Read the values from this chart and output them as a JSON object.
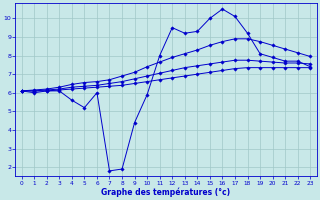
{
  "x": [
    0,
    1,
    2,
    3,
    4,
    5,
    6,
    7,
    8,
    9,
    10,
    11,
    12,
    13,
    14,
    15,
    16,
    17,
    18,
    19,
    20,
    21,
    22,
    23
  ],
  "line_zigzag": [
    6.1,
    6.0,
    6.1,
    6.1,
    5.6,
    5.2,
    6.0,
    1.8,
    1.9,
    4.4,
    5.9,
    8.0,
    9.5,
    9.2,
    9.3,
    10.0,
    10.5,
    10.1,
    9.2,
    8.1,
    7.9,
    7.7,
    7.7,
    7.4
  ],
  "line_smooth1": [
    6.1,
    6.15,
    6.2,
    6.3,
    6.45,
    6.55,
    6.6,
    6.7,
    6.9,
    7.1,
    7.4,
    7.65,
    7.9,
    8.1,
    8.3,
    8.55,
    8.75,
    8.9,
    8.9,
    8.75,
    8.55,
    8.35,
    8.15,
    7.95
  ],
  "line_smooth2": [
    6.1,
    6.1,
    6.15,
    6.2,
    6.3,
    6.35,
    6.4,
    6.5,
    6.6,
    6.75,
    6.9,
    7.05,
    7.2,
    7.35,
    7.45,
    7.55,
    7.65,
    7.75,
    7.75,
    7.7,
    7.65,
    7.6,
    7.6,
    7.55
  ],
  "line_smooth3": [
    6.1,
    6.1,
    6.1,
    6.15,
    6.2,
    6.25,
    6.3,
    6.35,
    6.4,
    6.5,
    6.6,
    6.7,
    6.8,
    6.9,
    7.0,
    7.1,
    7.2,
    7.3,
    7.35,
    7.35,
    7.35,
    7.35,
    7.35,
    7.35
  ],
  "bg_color": "#c8e8e8",
  "line_color": "#0000cc",
  "grid_color": "#a0c8c8",
  "xlabel": "Graphe des températures (°c)",
  "ylim": [
    1.5,
    10.8
  ],
  "xlim": [
    -0.5,
    23.5
  ],
  "yticks": [
    2,
    3,
    4,
    5,
    6,
    7,
    8,
    9,
    10
  ],
  "xticks": [
    0,
    1,
    2,
    3,
    4,
    5,
    6,
    7,
    8,
    9,
    10,
    11,
    12,
    13,
    14,
    15,
    16,
    17,
    18,
    19,
    20,
    21,
    22,
    23
  ]
}
